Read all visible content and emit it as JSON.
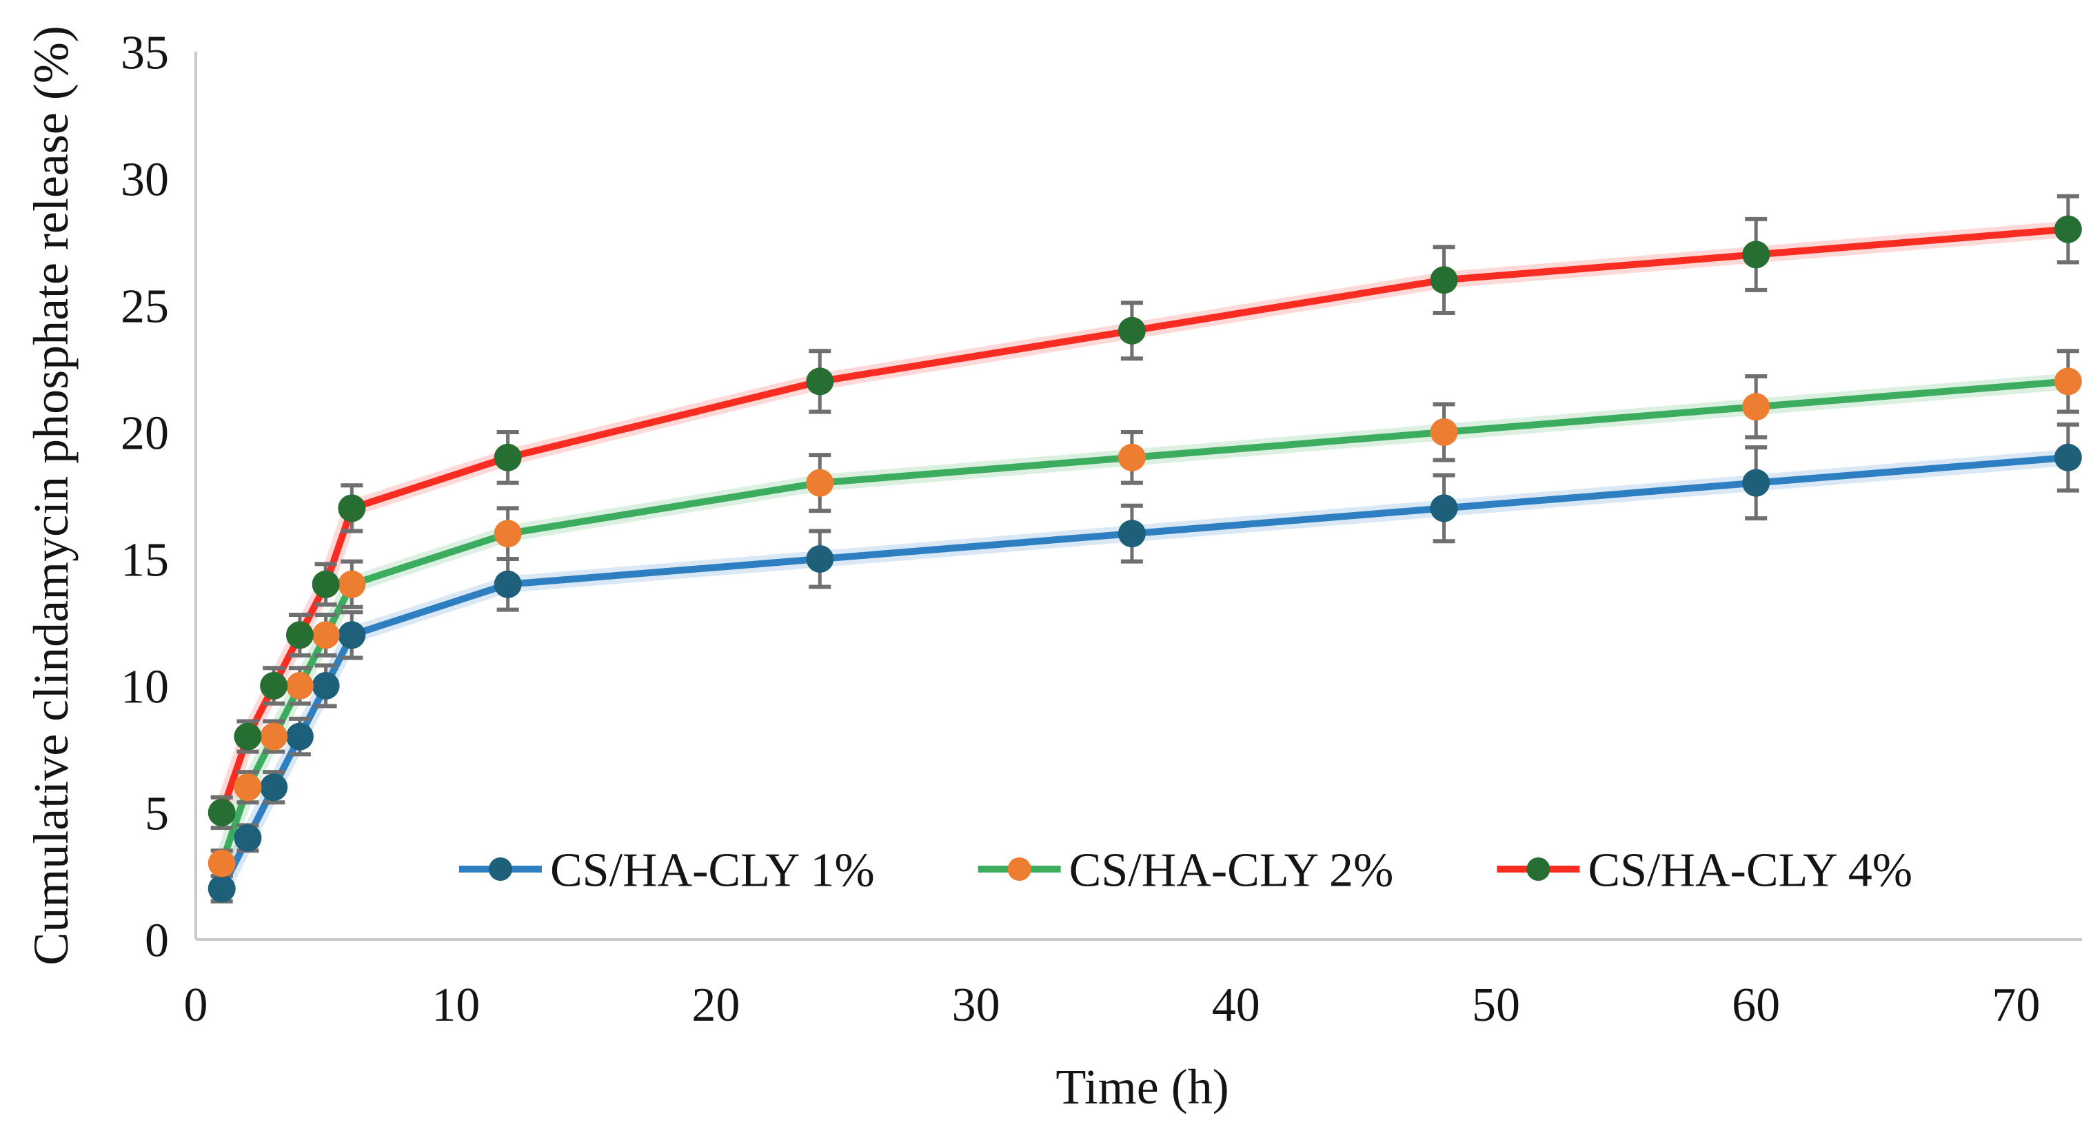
{
  "chart_data": {
    "type": "line",
    "title": "",
    "ylabel": "Cumulative clindamycin phosphate release (%)",
    "xlabel": "Time (h)",
    "x": [
      1,
      2,
      3,
      4,
      5,
      6,
      12,
      24,
      36,
      48,
      60,
      72
    ],
    "x_ticks": [
      0,
      10,
      20,
      30,
      40,
      50,
      60,
      70
    ],
    "y_ticks": [
      0,
      5,
      10,
      15,
      20,
      25,
      30,
      35
    ],
    "xlim": [
      0,
      72.8
    ],
    "ylim": [
      0,
      35
    ],
    "grid": false,
    "legend_position": "inside-bottom-center",
    "series": [
      {
        "name": "CS/HA-CLY 1%",
        "line_color": "#2D7FC1",
        "marker_color": "#1E5F7A",
        "values": [
          2,
          4,
          6,
          8,
          10,
          12,
          14,
          15,
          16,
          17,
          18,
          19
        ],
        "errors": [
          0.5,
          0.5,
          0.6,
          0.7,
          0.8,
          0.9,
          1.0,
          1.1,
          1.1,
          1.3,
          1.4,
          1.3
        ]
      },
      {
        "name": "CS/HA-CLY 2%",
        "line_color": "#3CAD5E",
        "marker_color": "#ED7D31",
        "values": [
          3,
          6,
          8,
          10,
          12,
          14,
          16,
          18,
          19,
          20,
          21,
          22
        ],
        "errors": [
          0.5,
          0.6,
          0.6,
          0.7,
          0.8,
          0.9,
          1.0,
          1.1,
          1.0,
          1.1,
          1.2,
          1.2
        ]
      },
      {
        "name": "CS/HA-CLY 4%",
        "line_color": "#F92C21",
        "marker_color": "#276E33",
        "values": [
          5,
          8,
          10,
          12,
          14,
          17,
          19,
          22,
          24,
          26,
          27,
          28
        ],
        "errors": [
          0.6,
          0.6,
          0.7,
          0.8,
          0.8,
          0.9,
          1.0,
          1.2,
          1.1,
          1.3,
          1.4,
          1.3
        ]
      }
    ],
    "error_bar_color": "#6F6F6F",
    "axis_color": "#C9C9C9",
    "text_color": "#141414"
  }
}
